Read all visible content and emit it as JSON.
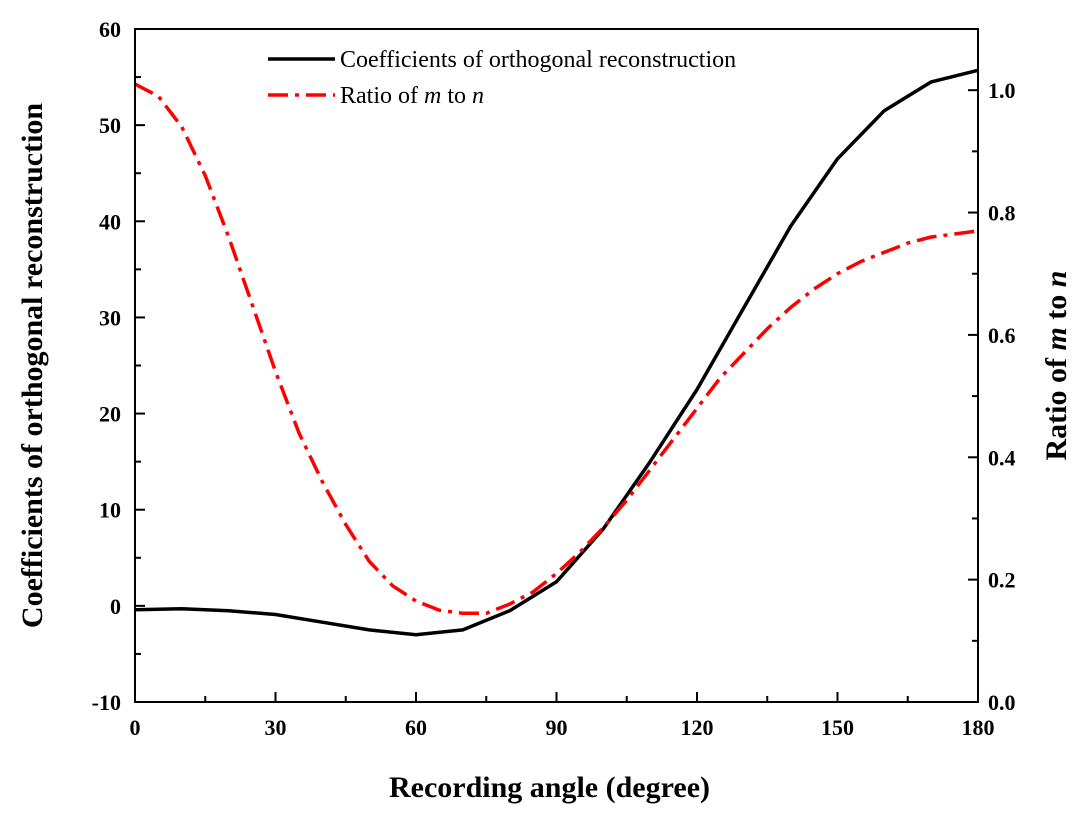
{
  "chart_data": {
    "type": "line",
    "xlabel": "Recording angle (degree)",
    "ylabel_left": "Coefficients of orthogonal reconstruction",
    "ylabel_right_parts": [
      "Ratio of ",
      "m",
      " to ",
      "n"
    ],
    "xlim": [
      0,
      180
    ],
    "ylim_left": [
      -10,
      60
    ],
    "ylim_right": [
      0.0,
      1.1
    ],
    "x_ticks": [
      "0",
      "30",
      "60",
      "90",
      "120",
      "150",
      "180"
    ],
    "y_left_ticks": [
      "-10",
      "0",
      "10",
      "20",
      "30",
      "40",
      "50",
      "60"
    ],
    "y_right_ticks": [
      "0.0",
      "0.2",
      "0.4",
      "0.6",
      "0.8",
      "1.0"
    ],
    "grid": false,
    "legend_position": "top-center",
    "series": [
      {
        "name": "Coefficients of orthogonal reconstruction",
        "axis": "left",
        "color": "#000000",
        "style": "solid",
        "x": [
          0,
          10,
          20,
          30,
          40,
          50,
          60,
          70,
          80,
          90,
          100,
          110,
          120,
          130,
          140,
          150,
          160,
          170,
          180
        ],
        "y": [
          -0.4,
          -0.3,
          -0.5,
          -0.9,
          -1.7,
          -2.5,
          -3.0,
          -2.5,
          -0.5,
          2.5,
          8.0,
          15.0,
          22.5,
          31.0,
          39.5,
          46.5,
          51.5,
          54.5,
          55.7
        ]
      },
      {
        "name_parts": [
          "Ratio of ",
          "m",
          " to ",
          "n"
        ],
        "axis": "right",
        "color": "#ff0000",
        "style": "dash-dot",
        "x": [
          0,
          5,
          10,
          15,
          20,
          25,
          30,
          35,
          40,
          45,
          50,
          55,
          60,
          65,
          70,
          75,
          80,
          85,
          90,
          95,
          100,
          105,
          110,
          115,
          120,
          125,
          130,
          135,
          140,
          145,
          150,
          155,
          160,
          165,
          170,
          175,
          180
        ],
        "y": [
          1.01,
          0.99,
          0.94,
          0.86,
          0.76,
          0.65,
          0.54,
          0.44,
          0.36,
          0.29,
          0.23,
          0.19,
          0.165,
          0.15,
          0.145,
          0.145,
          0.16,
          0.18,
          0.21,
          0.245,
          0.285,
          0.33,
          0.38,
          0.43,
          0.48,
          0.53,
          0.57,
          0.61,
          0.645,
          0.675,
          0.7,
          0.72,
          0.735,
          0.75,
          0.76,
          0.765,
          0.77
        ]
      }
    ]
  }
}
